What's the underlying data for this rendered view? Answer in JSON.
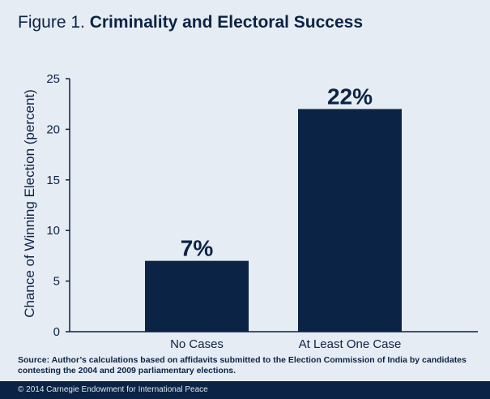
{
  "figure": {
    "label": "Figure 1.",
    "title": "Criminality and Electoral Success"
  },
  "source_note": "Source: Author’s calculations based on affidavits submitted to the Election Commission of India by candidates contesting the 2004 and 2009 parliamentary elections.",
  "footer": "© 2014 Carnegie Endowment for International Peace",
  "colors": {
    "bar": "#0b2344",
    "background": "#e6ecf3",
    "footer_bg": "#0b2344"
  },
  "chart_data": {
    "type": "bar",
    "categories": [
      "No Cases",
      "At Least One Case"
    ],
    "values": [
      7,
      22
    ],
    "data_labels": [
      "7%",
      "22%"
    ],
    "title": "Criminality and Electoral Success",
    "xlabel": "",
    "ylabel": "Chance of Winning Election (percent)",
    "ylim": [
      0,
      25
    ],
    "yticks": [
      "0",
      "5",
      "10",
      "15",
      "20",
      "25"
    ],
    "grid": false,
    "legend": "none"
  }
}
